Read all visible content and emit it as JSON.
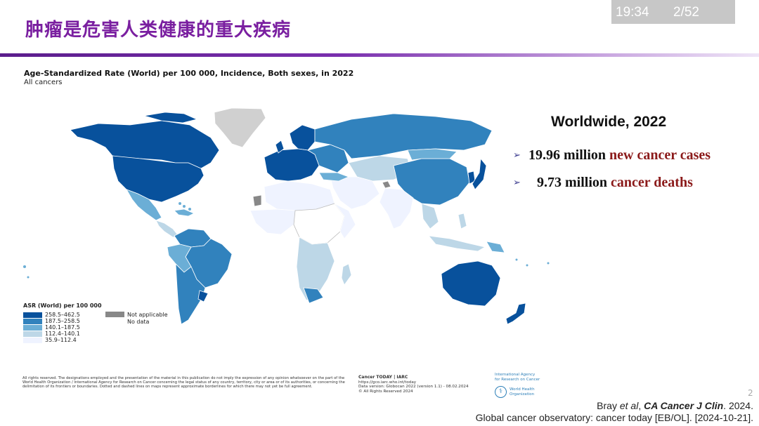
{
  "slide": {
    "title": "肿瘤是危害人类健康的重大疾病",
    "time": "19:34",
    "page": "2/52",
    "page_corner": "2"
  },
  "map": {
    "title": "Age-Standardized Rate (World) per 100 000, Incidence, Both sexes, in 2022",
    "subtitle": "All cancers",
    "legend_title": "ASR (World) per 100 000",
    "legend": [
      {
        "label": "258.5–462.5",
        "color": "#08519c"
      },
      {
        "label": "187.5–258.5",
        "color": "#3182bd"
      },
      {
        "label": "140.1–187.5",
        "color": "#6baed6"
      },
      {
        "label": "112.4–140.1",
        "color": "#bdd7e7"
      },
      {
        "label": "35.9–112.4",
        "color": "#eff3ff"
      }
    ],
    "legend_extra": [
      {
        "label": "Not applicable",
        "color": "#888888"
      },
      {
        "label": "No data",
        "color": "#ffffff"
      }
    ],
    "disclaimer": "All rights reserved. The designations employed and the presentation of the material in this publication do not imply the expression of any opinion whatsoever on the part of the World Health Organization / International Agency for Research on Cancer concerning the legal status of any country, territory, city or area or of its authorities, or concerning the delimitation of its frontiers or boundaries. Dotted and dashed lines on maps represent approximate borderlines for which there may not yet be full agreement.",
    "source_title": "Cancer TODAY | IARC",
    "source_url": "https://gco.iarc.who.int/today",
    "source_version": "Data version: Globocan 2022 (version 1.1) - 08.02.2024",
    "source_rights": "© All Rights Reserved 2024",
    "iarc_line1": "International Agency",
    "iarc_line2": "for Research on Cancer",
    "who_line1": "World Health",
    "who_line2": "Organization"
  },
  "facts": {
    "heading": "Worldwide, 2022",
    "items": [
      {
        "number": "19.96 million",
        "highlight": "new cancer cases"
      },
      {
        "number": "9.73 million",
        "highlight": "cancer deaths"
      }
    ],
    "arrow_icon": "➢"
  },
  "citation": {
    "line1_author": "Bray ",
    "line1_etal": "et al",
    "line1_sep": ", ",
    "line1_journal": "CA Cancer J Clin",
    "line1_year": ". 2024.",
    "line2": "Global cancer observatory: cancer today [EB/OL]. [2024-10-21]."
  }
}
